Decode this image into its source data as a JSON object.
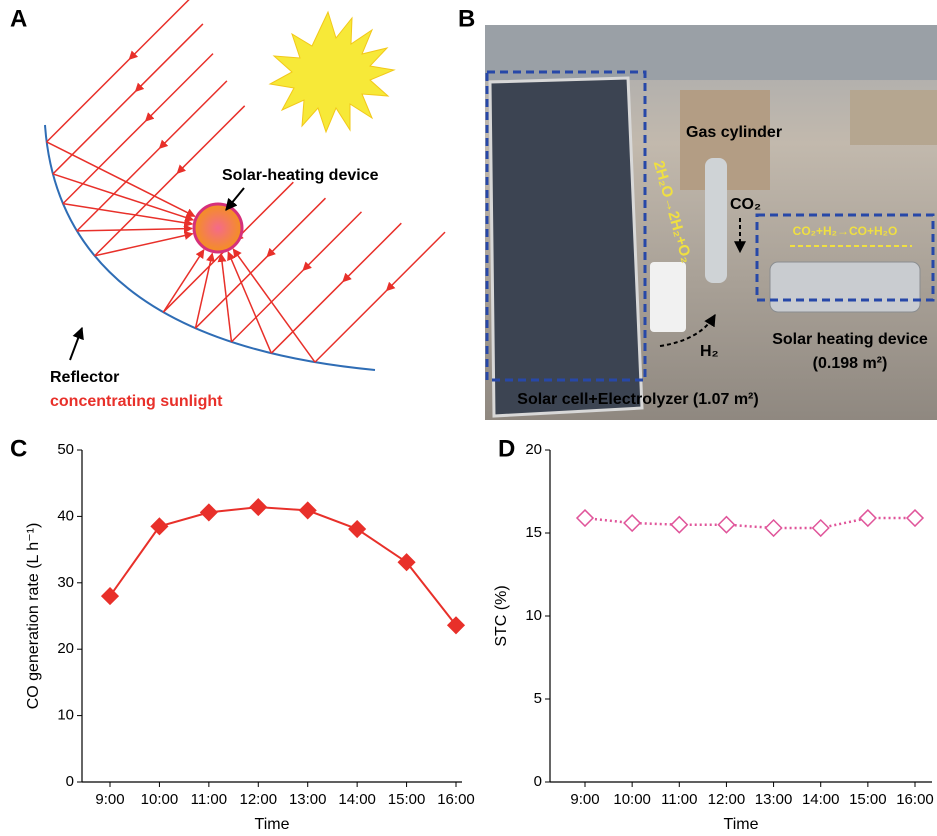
{
  "panel_a": {
    "label": "A",
    "device": "Solar-heating device",
    "reflector": "Reflector",
    "sunlight": "concentrating sunlight"
  },
  "panel_b": {
    "label": "B",
    "cylinder": "Gas cylinder",
    "co2": "CO₂",
    "reaction_heating": "CO₂+H₂→CO+H₂O",
    "reaction_electrolysis": "2H₂O→2H₂+O₂",
    "h2": "H₂",
    "heater": "Solar heating device",
    "heater_area": "(0.198 m²)",
    "cell": "Solar cell+Electrolyzer (1.07 m²)"
  },
  "chart_data": [
    {
      "type": "line",
      "panel_label": "C",
      "xlabel": "Time",
      "ylabel": "CO generation rate (L h⁻¹)",
      "categories": [
        "9:00",
        "10:00",
        "11:00",
        "12:00",
        "13:00",
        "14:00",
        "15:00",
        "16:00"
      ],
      "series": [
        {
          "color": "#e8302a",
          "marker": "diamond",
          "marker_filled": true,
          "line_style": "solid",
          "values": [
            28,
            38.5,
            40.6,
            41.4,
            40.9,
            38.1,
            33.1,
            23.6
          ]
        }
      ],
      "ylim": [
        0,
        50
      ],
      "yticks": [
        0,
        10,
        20,
        30,
        40,
        50
      ]
    },
    {
      "type": "line",
      "panel_label": "D",
      "xlabel": "Time",
      "ylabel": "STC (%)",
      "categories": [
        "9:00",
        "10:00",
        "11:00",
        "12:00",
        "13:00",
        "14:00",
        "15:00",
        "16:00"
      ],
      "series": [
        {
          "color": "#e0559a",
          "marker": "diamond",
          "marker_filled": false,
          "line_style": "dotted",
          "values": [
            15.9,
            15.6,
            15.5,
            15.5,
            15.3,
            15.3,
            15.9,
            15.9
          ]
        }
      ],
      "ylim": [
        0,
        20
      ],
      "yticks": [
        0,
        5,
        10,
        15,
        20
      ]
    }
  ]
}
